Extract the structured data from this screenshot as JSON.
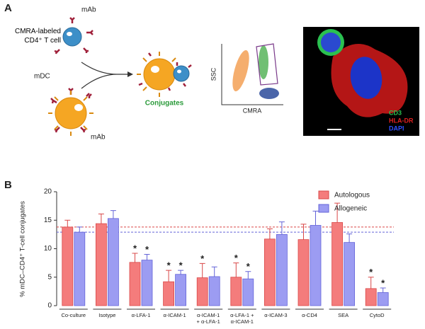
{
  "panel_a": {
    "label": "A",
    "mab_top": "mAb",
    "tcell_label": "CMRA-labeled\nCD4⁺ T cell",
    "mdc_label": "mDC",
    "mab_bottom": "mAb",
    "conjugates": "Conjugates",
    "flow_y": "SSC",
    "flow_x": "CMRA",
    "stains": [
      "CD3",
      "HLA-DR",
      "DAPI"
    ]
  },
  "chart_data": {
    "panel_label": "B",
    "type": "bar",
    "ylabel": "% mDC–CD4⁺ T-cell conjugates",
    "categories": [
      "Co-culture",
      "Isotype",
      "α-LFA-1",
      "α-ICAM-1",
      "α-ICAM-1\n+ α-LFA-1",
      "α-LFA-1 +\nα-ICAM-1",
      "α-ICAM-3",
      "α-CD4",
      "SEA",
      "CytoD"
    ],
    "series": [
      {
        "name": "Autologous",
        "color": "#f47c7c",
        "edge": "#d94848",
        "values": [
          13.8,
          14.4,
          7.6,
          4.2,
          4.9,
          5.0,
          11.7,
          11.6,
          14.6,
          3.0
        ],
        "errors": [
          1.2,
          1.7,
          1.6,
          2.0,
          2.5,
          2.5,
          1.8,
          2.7,
          3.4,
          2.0
        ],
        "markers": [
          null,
          null,
          "*",
          "*",
          "*",
          "*",
          null,
          null,
          null,
          "*"
        ]
      },
      {
        "name": "Allogeneic",
        "color": "#9c9cf2",
        "edge": "#6464d8",
        "values": [
          12.9,
          15.3,
          8.0,
          5.5,
          5.1,
          4.7,
          12.5,
          14.1,
          11.1,
          2.3
        ],
        "errors": [
          0.9,
          1.4,
          1.0,
          0.7,
          1.7,
          1.3,
          2.2,
          2.5,
          1.5,
          0.8
        ],
        "markers": [
          null,
          null,
          "*",
          "*",
          null,
          "*",
          null,
          null,
          null,
          "*"
        ]
      }
    ],
    "ylim": [
      0,
      20
    ],
    "yticks": [
      0,
      5,
      10,
      15,
      20
    ],
    "legend": "upper right"
  }
}
